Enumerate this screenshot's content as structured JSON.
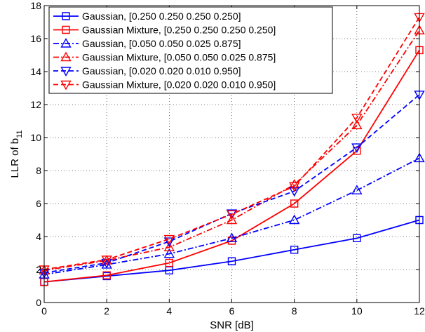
{
  "chart_data": {
    "type": "line",
    "xlabel": "SNR [dB]",
    "ylabel": {
      "main": "LLR of b",
      "subscript": "11"
    },
    "xlim": [
      0,
      12
    ],
    "ylim": [
      0,
      18
    ],
    "xticks": [
      0,
      2,
      4,
      6,
      8,
      10,
      12
    ],
    "yticks": [
      0,
      2,
      4,
      6,
      8,
      10,
      12,
      14,
      16,
      18
    ],
    "grid": true,
    "legend_position": "top-left",
    "x": [
      0,
      2,
      4,
      6,
      8,
      10,
      12
    ],
    "series": [
      {
        "name": "Gaussian, [0.250 0.250 0.250 0.250]",
        "color": "#0000ff",
        "dash": "solid",
        "marker": "square",
        "values": [
          1.25,
          1.6,
          1.95,
          2.5,
          3.2,
          3.9,
          5.0
        ]
      },
      {
        "name": "Gaussian Mixture, [0.250 0.250 0.250 0.250]",
        "color": "#ff0000",
        "dash": "solid",
        "marker": "square",
        "values": [
          1.25,
          1.65,
          2.4,
          3.75,
          6.0,
          9.2,
          15.3
        ]
      },
      {
        "name": "Gaussian, [0.050 0.050 0.025 0.875]",
        "color": "#0000ff",
        "dash": "dashdot",
        "marker": "triangle-up",
        "values": [
          1.7,
          2.3,
          2.95,
          3.9,
          5.0,
          6.8,
          8.75
        ]
      },
      {
        "name": "Gaussian Mixture, [0.050 0.050 0.025 0.875]",
        "color": "#ff0000",
        "dash": "dashdot",
        "marker": "triangle-up",
        "values": [
          1.95,
          2.55,
          3.35,
          5.0,
          7.15,
          10.75,
          16.5
        ]
      },
      {
        "name": "Gaussian, [0.020 0.020 0.010 0.950]",
        "color": "#0000ff",
        "dash": "dashed",
        "marker": "triangle-down",
        "values": [
          1.8,
          2.4,
          3.7,
          5.4,
          6.75,
          9.4,
          12.6
        ]
      },
      {
        "name": "Gaussian Mixture, [0.020 0.020 0.010 0.950]",
        "color": "#ff0000",
        "dash": "dashed",
        "marker": "triangle-down",
        "values": [
          2.0,
          2.6,
          3.85,
          5.35,
          7.05,
          11.2,
          17.3
        ]
      }
    ]
  }
}
